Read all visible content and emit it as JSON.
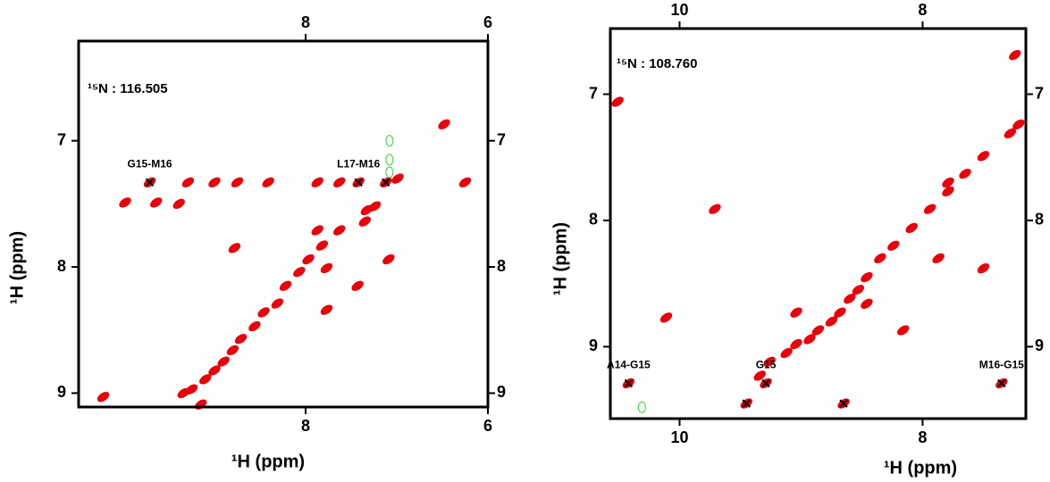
{
  "chart_data": [
    {
      "type": "scatter",
      "n_label": "¹⁵N :  116.505",
      "x_label": "¹H  (ppm)",
      "y_label": "¹H  (ppm)",
      "xlim": [
        10.49,
        6
      ],
      "ylim": [
        6.21,
        9.11
      ],
      "xticks": [
        8,
        6
      ],
      "yticks": [
        7,
        8,
        9
      ],
      "series": [
        {
          "color": "#e8000b",
          "marker": "ellipse",
          "x": [
            9.71,
            9.29,
            9.0,
            8.75,
            8.41,
            7.87,
            7.63,
            7.42,
            7.12,
            7.33,
            7.24,
            6.99,
            6.25,
            9.98,
            9.64,
            9.39,
            7.35,
            7.87,
            7.63,
            7.82,
            7.97,
            8.07,
            8.22,
            8.31,
            8.46,
            8.56,
            8.71,
            8.8,
            8.9,
            9.0,
            9.1,
            9.25,
            9.34,
            7.77,
            7.77,
            8.78,
            7.09,
            7.43,
            9.15,
            10.22,
            6.48
          ],
          "y": [
            7.33,
            7.33,
            7.33,
            7.33,
            7.33,
            7.33,
            7.33,
            7.33,
            7.33,
            7.55,
            7.52,
            7.3,
            7.33,
            7.49,
            7.49,
            7.5,
            7.64,
            7.71,
            7.71,
            7.83,
            7.94,
            8.04,
            8.15,
            8.29,
            8.36,
            8.47,
            8.57,
            8.66,
            8.75,
            8.82,
            8.89,
            8.97,
            9.0,
            8.34,
            8.01,
            7.85,
            7.94,
            8.15,
            9.09,
            9.03,
            6.87
          ]
        },
        {
          "color": "#33cc33",
          "marker": "ring",
          "x": [
            7.08,
            7.08,
            7.08
          ],
          "y": [
            7.0,
            7.15,
            7.25
          ]
        },
        {
          "color": "#000000",
          "marker": "x",
          "x": [
            9.71,
            7.42,
            7.12
          ],
          "y": [
            7.33,
            7.33,
            7.33
          ]
        }
      ],
      "annotations": [
        {
          "text": "G15-M16",
          "x": 9.71,
          "y": 7.33
        },
        {
          "text": "L17-M16",
          "x": 7.42,
          "y": 7.33
        }
      ]
    },
    {
      "type": "scatter",
      "n_label": "¹⁵N :  108.760",
      "x_label": "¹H  (ppm)",
      "y_label": "¹H  (ppm)",
      "xlim": [
        10.57,
        7.15
      ],
      "ylim": [
        6.48,
        9.57
      ],
      "xticks": [
        10,
        8
      ],
      "yticks": [
        7,
        8,
        9
      ],
      "series": [
        {
          "color": "#e8000b",
          "marker": "ellipse",
          "x": [
            7.21,
            7.28,
            7.5,
            7.65,
            7.79,
            7.94,
            8.09,
            8.24,
            8.35,
            8.46,
            8.53,
            8.6,
            8.68,
            8.75,
            8.86,
            8.93,
            9.04,
            9.12,
            9.26,
            9.34,
            9.29,
            9.45,
            8.65,
            10.42,
            7.35,
            7.87,
            7.79,
            9.04,
            10.11,
            9.71,
            7.24,
            10.51,
            8.46,
            8.16,
            7.5
          ],
          "y": [
            7.24,
            7.31,
            7.49,
            7.63,
            7.77,
            7.91,
            8.06,
            8.2,
            8.3,
            8.45,
            8.55,
            8.62,
            8.73,
            8.8,
            8.87,
            8.94,
            8.98,
            9.05,
            9.12,
            9.23,
            9.29,
            9.45,
            9.45,
            9.29,
            9.29,
            8.3,
            7.7,
            8.73,
            8.77,
            7.91,
            6.69,
            7.06,
            8.66,
            8.87,
            8.38
          ]
        },
        {
          "color": "#33cc33",
          "marker": "ring",
          "x": [
            10.31
          ],
          "y": [
            9.48
          ]
        },
        {
          "color": "#000000",
          "marker": "x",
          "x": [
            10.42,
            9.29,
            9.45,
            8.65,
            7.35
          ],
          "y": [
            9.29,
            9.29,
            9.45,
            9.45,
            9.29
          ]
        }
      ],
      "annotations": [
        {
          "text": "A14-G15",
          "x": 10.42,
          "y": 9.29
        },
        {
          "text": "G15",
          "x": 9.29,
          "y": 9.29
        },
        {
          "text": "M16-G15",
          "x": 7.35,
          "y": 9.29
        }
      ]
    }
  ]
}
